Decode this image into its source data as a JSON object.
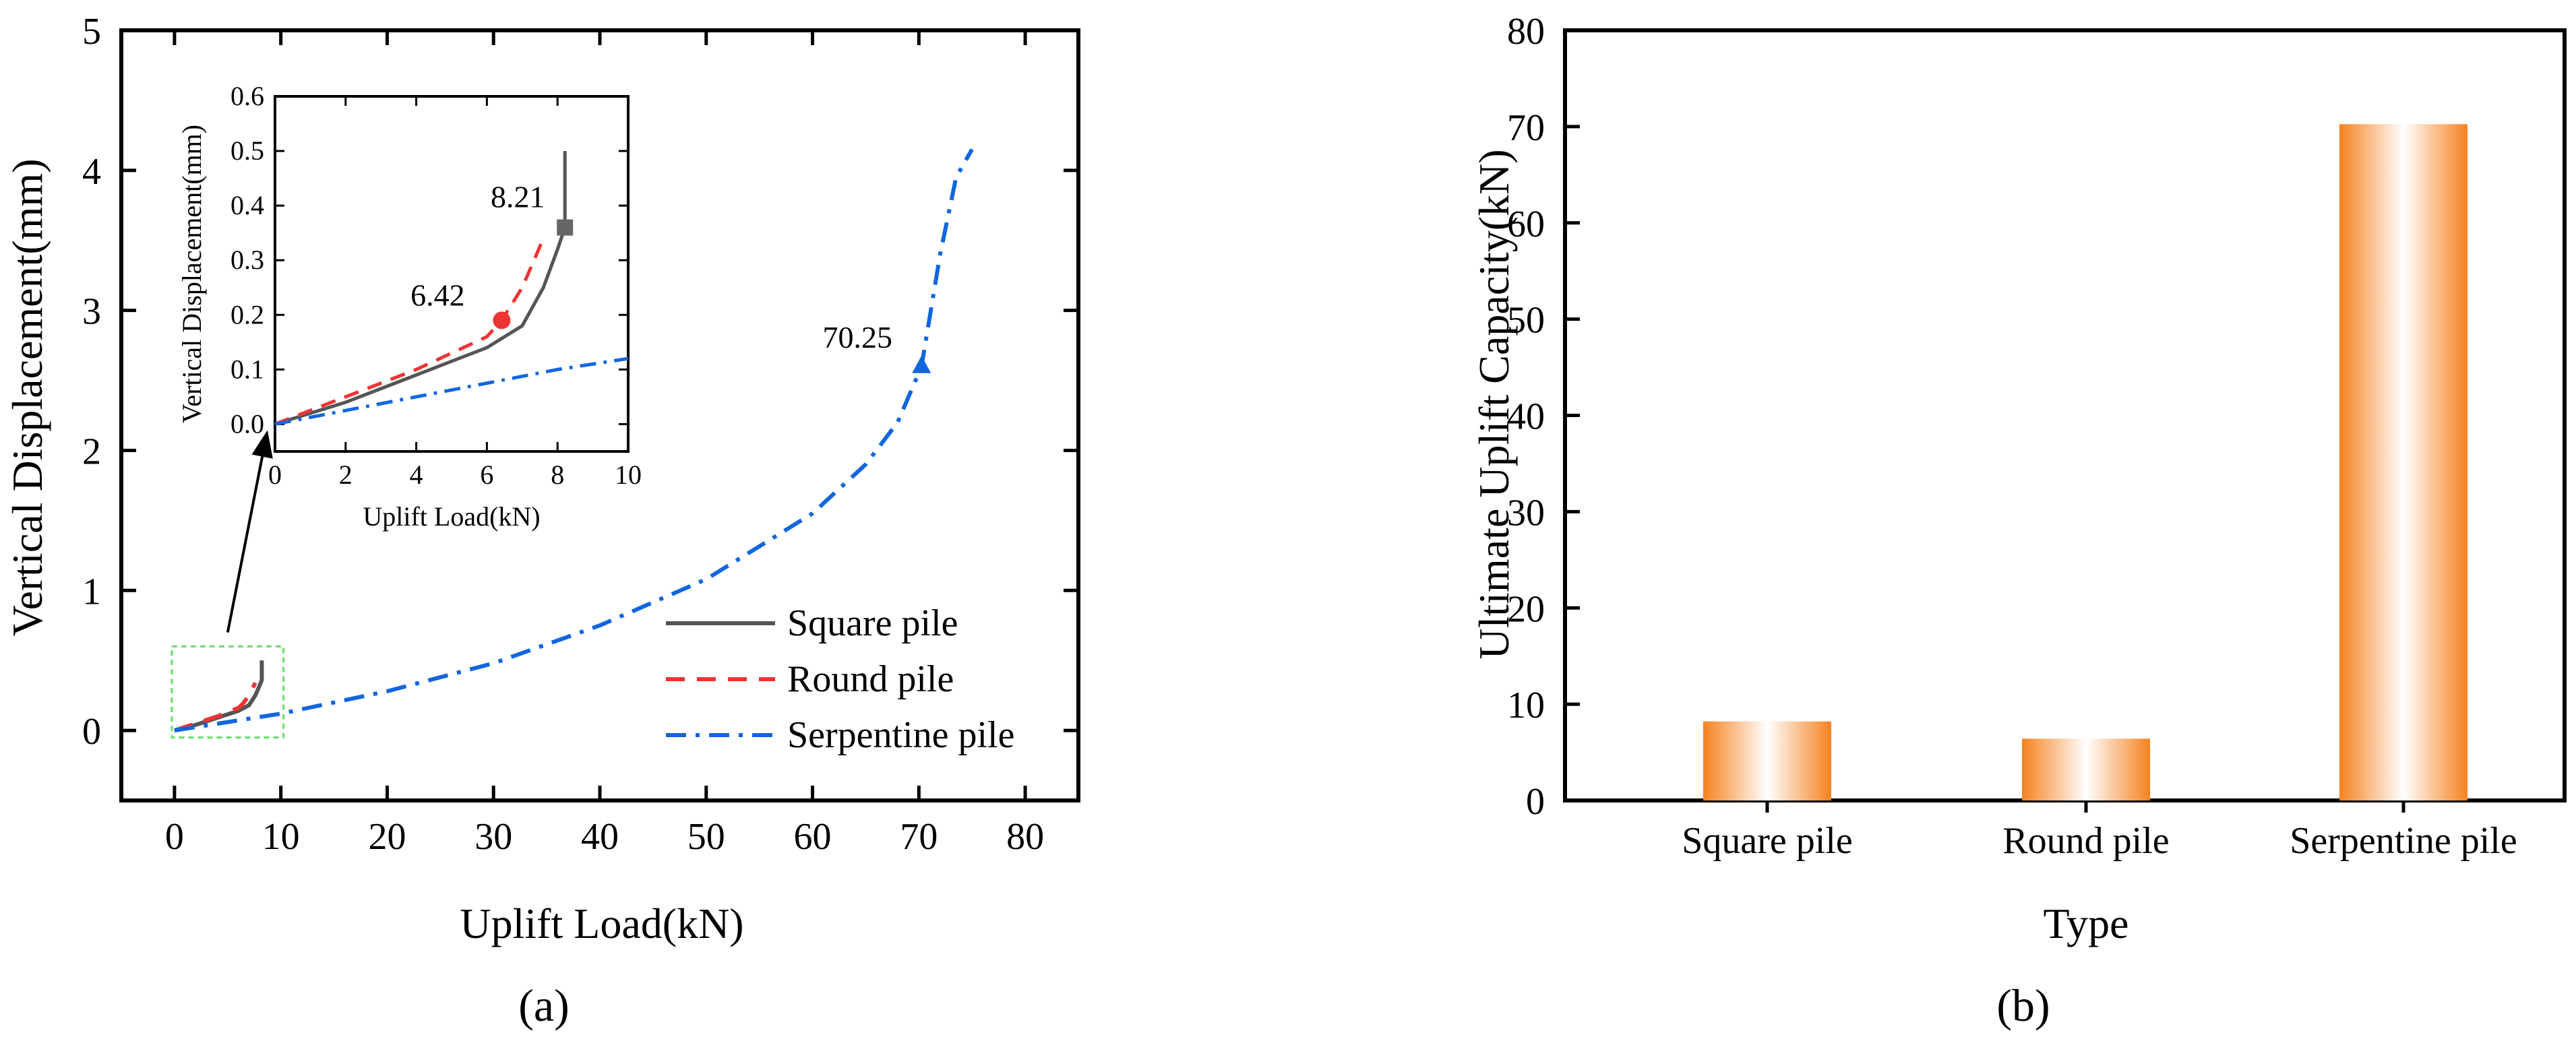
{
  "panel_labels": {
    "a": "(a)",
    "b": "(b)"
  },
  "chart_data": [
    {
      "id": "panel-a",
      "type": "line",
      "xlabel": "Uplift Load(kN)",
      "ylabel": "Vertical Displacement(mm)",
      "xlim": [
        -5,
        85
      ],
      "ylim": [
        -0.5,
        5
      ],
      "xticks": [
        0,
        10,
        20,
        30,
        40,
        50,
        60,
        70,
        80
      ],
      "yticks": [
        0,
        1,
        2,
        3,
        4,
        5
      ],
      "legend": {
        "position": "bottom-right",
        "entries": [
          "Square pile",
          "Round pile",
          "Serpentine pile"
        ]
      },
      "series": [
        {
          "name": "Square pile",
          "color": "#555555",
          "dash": "solid",
          "x": [
            0,
            2,
            4,
            6,
            7,
            7.6,
            8.0,
            8.21,
            8.21
          ],
          "y": [
            0,
            0.04,
            0.09,
            0.14,
            0.18,
            0.25,
            0.32,
            0.36,
            0.5
          ]
        },
        {
          "name": "Round pile",
          "color": "#ee3333",
          "dash": "dashed",
          "x": [
            0,
            2,
            4,
            6,
            6.42,
            7.0,
            7.6
          ],
          "y": [
            0,
            0.05,
            0.1,
            0.16,
            0.19,
            0.25,
            0.34
          ]
        },
        {
          "name": "Serpentine pile",
          "color": "#1166dd",
          "dash": "dashdot",
          "x": [
            0,
            10,
            20,
            30,
            40,
            50,
            60,
            65,
            68,
            70.25,
            72,
            73.5,
            75
          ],
          "y": [
            0,
            0.12,
            0.28,
            0.48,
            0.75,
            1.08,
            1.55,
            1.9,
            2.2,
            2.6,
            3.4,
            3.95,
            4.15
          ]
        }
      ],
      "annotations": [
        {
          "text": "70.25",
          "series": "Serpentine pile",
          "x": 70.25,
          "y": 2.6,
          "marker": "triangle"
        }
      ],
      "inset": {
        "xlabel": "Uplift Load(kN)",
        "ylabel": "Vertical Displacement(mm)",
        "xlim": [
          0,
          10
        ],
        "ylim": [
          -0.05,
          0.6
        ],
        "xticks": [
          0,
          2,
          4,
          6,
          8,
          10
        ],
        "yticks": [
          0.0,
          0.1,
          0.2,
          0.3,
          0.4,
          0.5,
          0.6
        ],
        "ytick_labels": [
          "0.0",
          "0.1",
          "0.2",
          "0.3",
          "0.4",
          "0.5",
          "0.6"
        ],
        "series": [
          {
            "name": "Square pile",
            "color": "#555555",
            "dash": "solid",
            "x": [
              0,
              2,
              4,
              5,
              6,
              7,
              7.6,
              8.0,
              8.21,
              8.21
            ],
            "y": [
              0,
              0.04,
              0.09,
              0.115,
              0.14,
              0.18,
              0.25,
              0.32,
              0.36,
              0.5
            ]
          },
          {
            "name": "Round pile",
            "color": "#ee3333",
            "dash": "dashed",
            "x": [
              0,
              2,
              4,
              5,
              6,
              6.42,
              7.0,
              7.6
            ],
            "y": [
              0,
              0.05,
              0.1,
              0.13,
              0.16,
              0.19,
              0.25,
              0.34
            ]
          },
          {
            "name": "Serpentine pile",
            "color": "#1166dd",
            "dash": "dashdot",
            "x": [
              0,
              2,
              4,
              6,
              8,
              10
            ],
            "y": [
              0,
              0.025,
              0.05,
              0.075,
              0.1,
              0.12
            ]
          }
        ],
        "annotations": [
          {
            "text": "6.42",
            "series": "Round pile",
            "x": 6.42,
            "y": 0.19,
            "marker": "circle",
            "color": "#ee3333"
          },
          {
            "text": "8.21",
            "series": "Square pile",
            "x": 8.21,
            "y": 0.36,
            "marker": "square",
            "color": "#666666"
          }
        ]
      },
      "zoom_box": {
        "x": [
          0,
          10
        ],
        "y": [
          -0.05,
          0.6
        ],
        "color": "#66dd66"
      }
    },
    {
      "id": "panel-b",
      "type": "bar",
      "xlabel": "Type",
      "ylabel": "Ultimate Uplift Capacity(kN)",
      "categories": [
        "Square pile",
        "Round pile",
        "Serpentine pile"
      ],
      "values": [
        8.21,
        6.42,
        70.25
      ],
      "ylim": [
        0,
        80
      ],
      "yticks": [
        0,
        10,
        20,
        30,
        40,
        50,
        60,
        70,
        80
      ],
      "bar_color": "#f58220"
    }
  ]
}
